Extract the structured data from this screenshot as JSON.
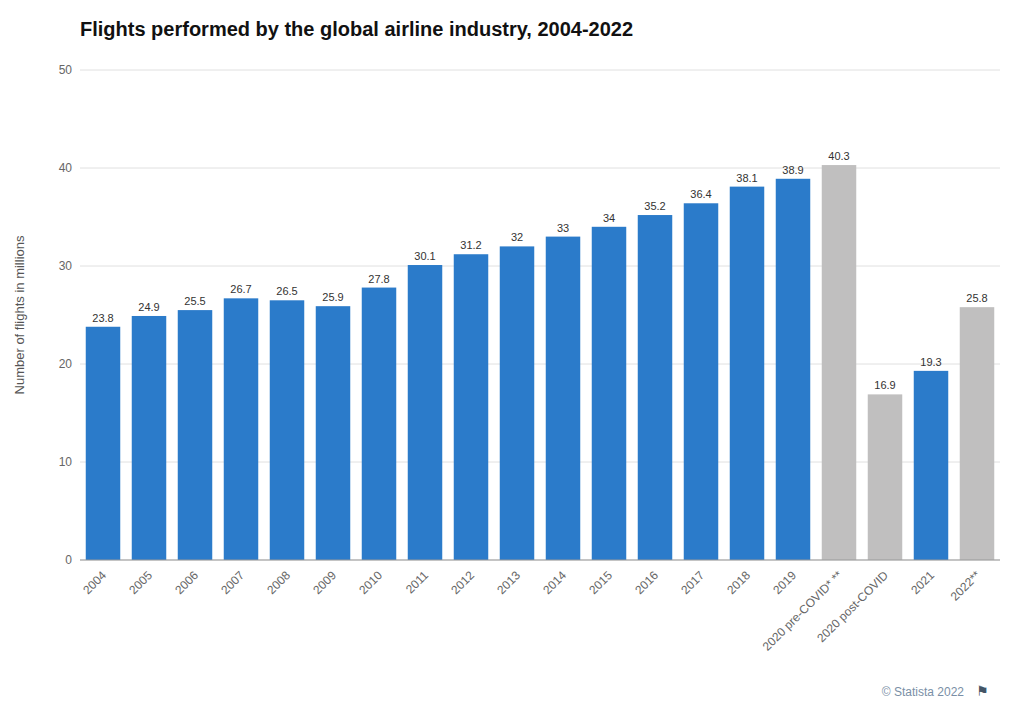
{
  "chart_data": {
    "type": "bar",
    "title": "Flights performed by the global airline industry, 2004-2022",
    "y_label": "Number of flights in millions",
    "categories": [
      "2004",
      "2005",
      "2006",
      "2007",
      "2008",
      "2009",
      "2010",
      "2011",
      "2012",
      "2013",
      "2014",
      "2015",
      "2016",
      "2017",
      "2018",
      "2019",
      "2020 pre-COVID* **",
      "2020 post-COVID",
      "2021",
      "2022**"
    ],
    "values": [
      23.8,
      24.9,
      25.5,
      26.7,
      26.5,
      25.9,
      27.8,
      30.1,
      31.2,
      32,
      33,
      34,
      35.2,
      36.4,
      38.1,
      38.9,
      40.3,
      16.9,
      19.3,
      25.8
    ],
    "colors": [
      "#2b7bca",
      "#2b7bca",
      "#2b7bca",
      "#2b7bca",
      "#2b7bca",
      "#2b7bca",
      "#2b7bca",
      "#2b7bca",
      "#2b7bca",
      "#2b7bca",
      "#2b7bca",
      "#2b7bca",
      "#2b7bca",
      "#2b7bca",
      "#2b7bca",
      "#2b7bca",
      "#c0bfbf",
      "#c0bfbf",
      "#2b7bca",
      "#c0bfbf"
    ],
    "ylim": [
      0,
      50
    ],
    "yticks": [
      0,
      10,
      20,
      30,
      40,
      50
    ],
    "grid": true,
    "data_labels": true,
    "annotations": [
      "© Statista 2022",
      "⚑"
    ]
  }
}
